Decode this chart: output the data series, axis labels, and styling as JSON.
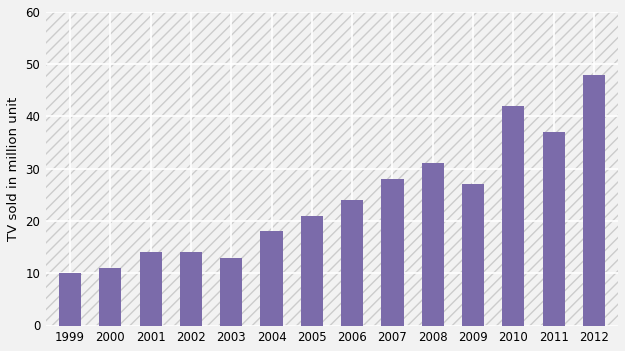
{
  "years": [
    "1999",
    "2000",
    "2001",
    "2002",
    "2003",
    "2004",
    "2005",
    "2006",
    "2007",
    "2008",
    "2009",
    "2010",
    "2011",
    "2012"
  ],
  "values": [
    10,
    11,
    14,
    14,
    13,
    18,
    21,
    24,
    28,
    31,
    27,
    42,
    37,
    48
  ],
  "bar_color": "#7b6baa",
  "ylabel": "TV sold in million unit",
  "ylim": [
    0,
    60
  ],
  "yticks": [
    0,
    10,
    20,
    30,
    40,
    50,
    60
  ],
  "background_color": "#f0f0f0",
  "plot_bg_color": "#f0f0f0",
  "grid_color": "#ffffff",
  "tick_label_fontsize": 8.5,
  "axis_label_fontsize": 9.5,
  "bar_width": 0.55
}
